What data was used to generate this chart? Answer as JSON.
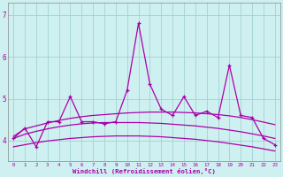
{
  "xlabel": "Windchill (Refroidissement éolien,°C)",
  "background_color": "#cff0f0",
  "grid_color": "#99cccc",
  "line_color": "#aa00aa",
  "x": [
    0,
    1,
    2,
    3,
    4,
    5,
    6,
    7,
    8,
    9,
    10,
    11,
    12,
    13,
    14,
    15,
    16,
    17,
    18,
    19,
    20,
    21,
    22,
    23
  ],
  "y_main": [
    4.05,
    4.3,
    3.85,
    4.45,
    4.45,
    5.05,
    4.45,
    4.45,
    4.4,
    4.45,
    5.2,
    6.8,
    5.35,
    4.75,
    4.6,
    5.05,
    4.6,
    4.7,
    4.55,
    5.8,
    4.6,
    4.55,
    4.05,
    3.9
  ],
  "trend_upper_y": [
    4.1,
    4.28,
    4.35,
    4.42,
    4.48,
    4.53,
    4.57,
    4.6,
    4.62,
    4.64,
    4.66,
    4.67,
    4.68,
    4.68,
    4.68,
    4.67,
    4.66,
    4.64,
    4.62,
    4.59,
    4.55,
    4.5,
    4.44,
    4.38
  ],
  "trend_mid_y": [
    4.05,
    4.15,
    4.22,
    4.28,
    4.33,
    4.37,
    4.4,
    4.42,
    4.43,
    4.43,
    4.43,
    4.43,
    4.42,
    4.41,
    4.39,
    4.37,
    4.35,
    4.32,
    4.29,
    4.25,
    4.21,
    4.16,
    4.11,
    4.05
  ],
  "trend_lower_y": [
    3.85,
    3.9,
    3.95,
    3.99,
    4.02,
    4.05,
    4.07,
    4.09,
    4.1,
    4.11,
    4.11,
    4.11,
    4.1,
    4.09,
    4.07,
    4.05,
    4.03,
    4.0,
    3.97,
    3.93,
    3.89,
    3.85,
    3.8,
    3.75
  ],
  "ylim": [
    3.5,
    7.3
  ],
  "xlim": [
    -0.5,
    23.5
  ],
  "yticks": [
    4,
    5,
    6,
    7
  ],
  "xticks": [
    0,
    1,
    2,
    3,
    4,
    5,
    6,
    7,
    8,
    9,
    10,
    11,
    12,
    13,
    14,
    15,
    16,
    17,
    18,
    19,
    20,
    21,
    22,
    23
  ]
}
